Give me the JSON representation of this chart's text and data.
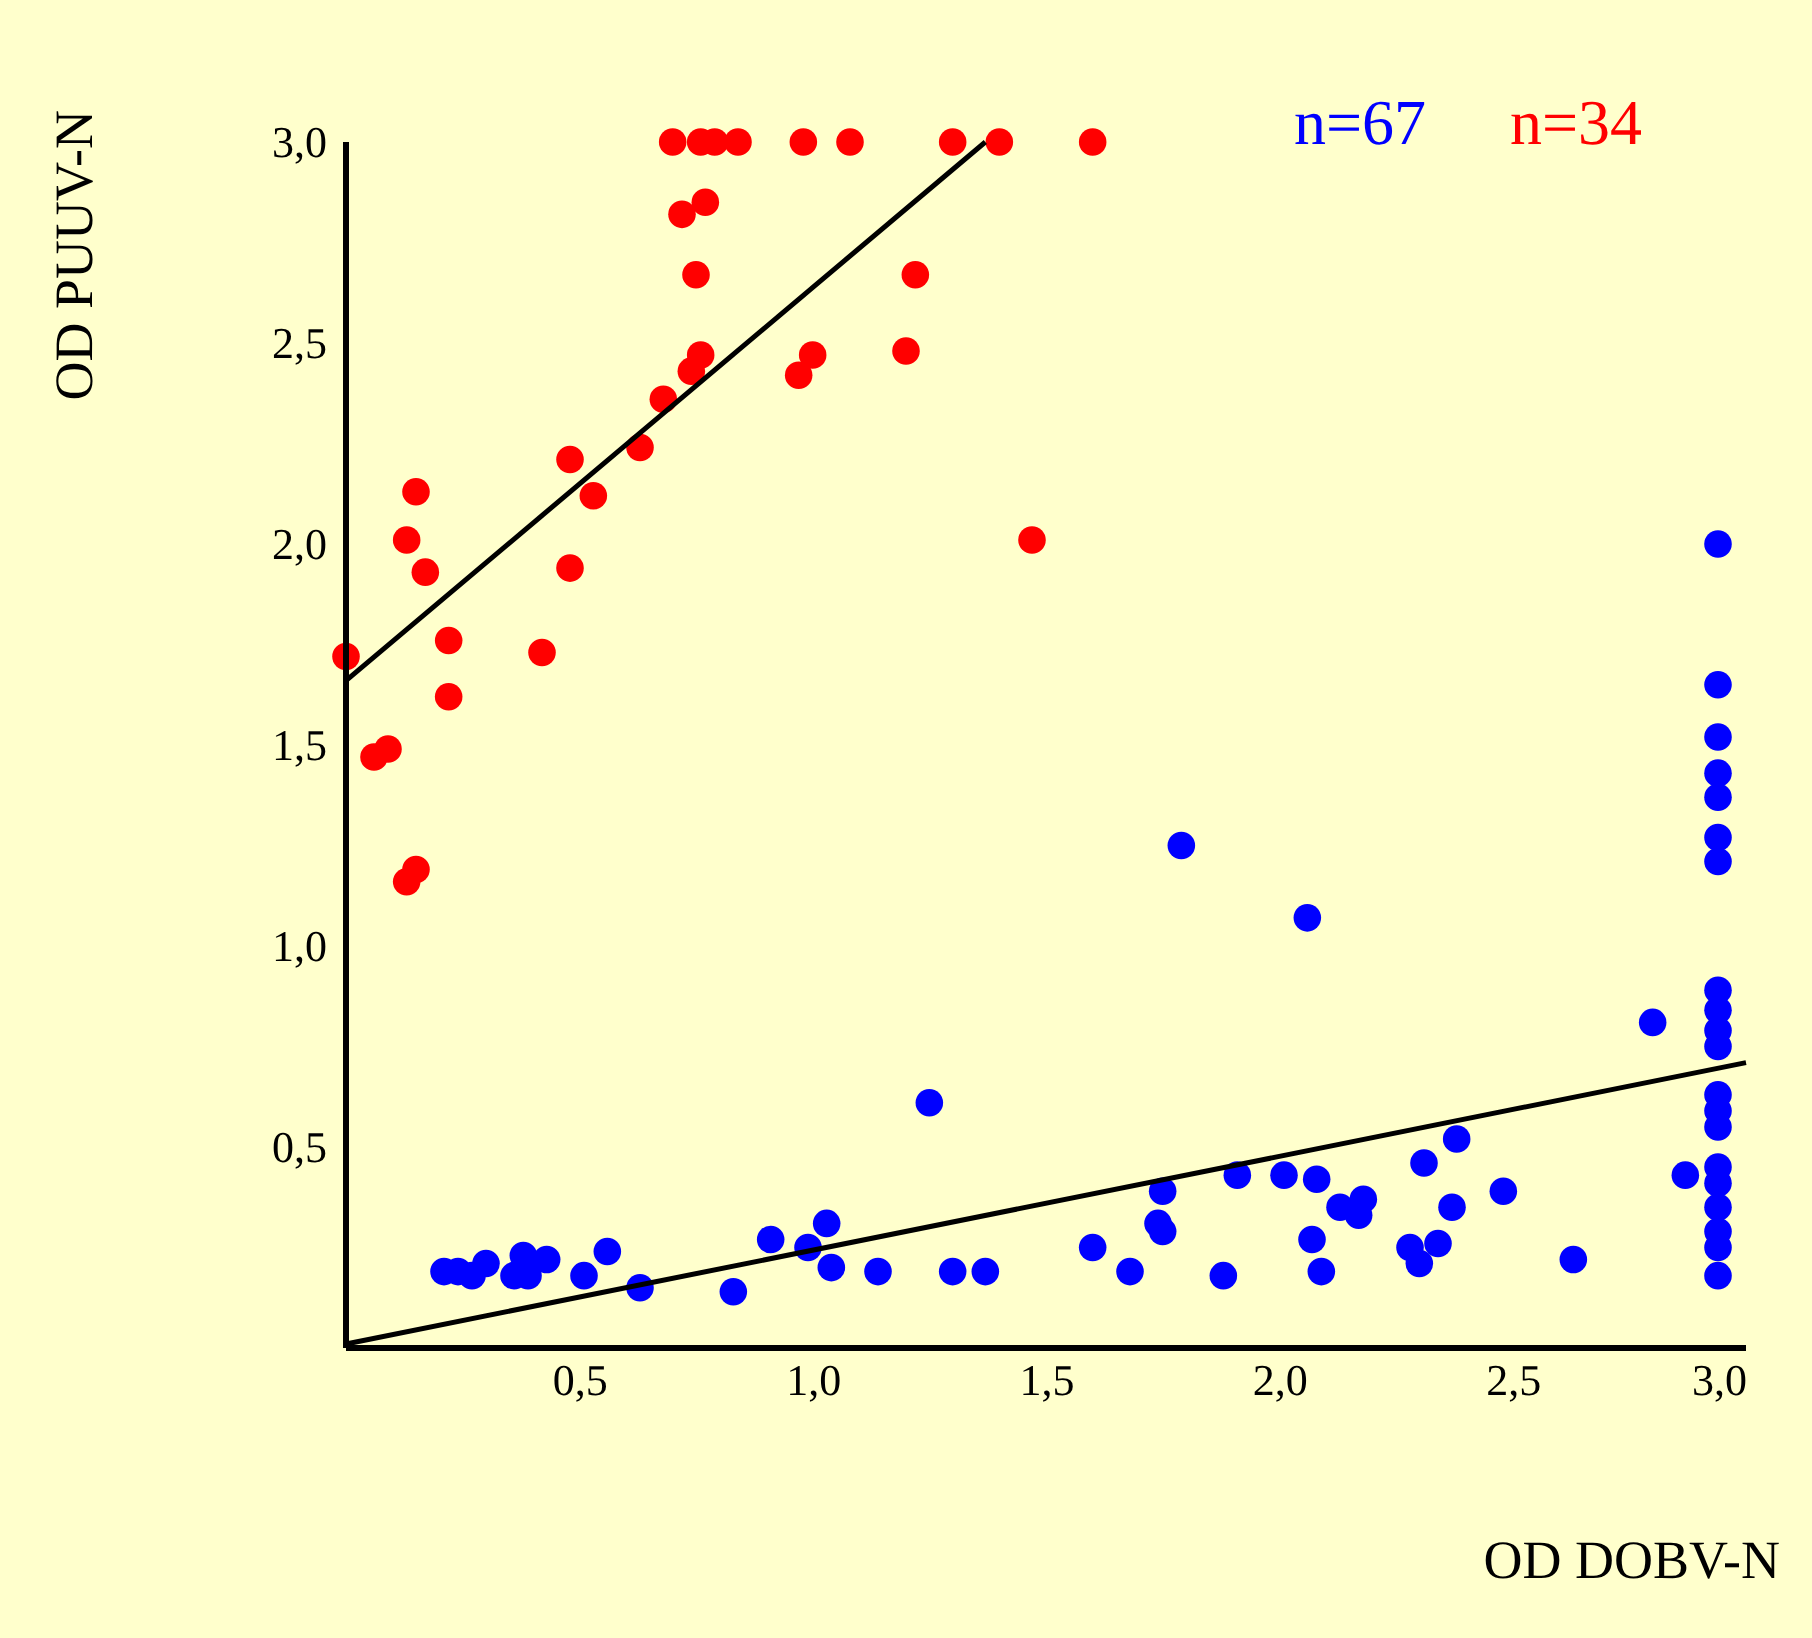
{
  "chart_data": {
    "type": "scatter",
    "xlabel": "OD DOBV-N",
    "ylabel": "OD PUUV-N",
    "xlim": [
      0,
      3
    ],
    "ylim": [
      0,
      3
    ],
    "xticks": [
      {
        "value": 0.5,
        "label": "0,5"
      },
      {
        "value": 1,
        "label": "1,0"
      },
      {
        "value": 1.5,
        "label": "1,5"
      },
      {
        "value": 2,
        "label": "2,0"
      },
      {
        "value": 2.5,
        "label": "2,5"
      },
      {
        "value": 3,
        "label": "3,0"
      }
    ],
    "yticks": [
      {
        "value": 0.5,
        "label": "0,5"
      },
      {
        "value": 1,
        "label": "1,0"
      },
      {
        "value": 1.5,
        "label": "1,5"
      },
      {
        "value": 2,
        "label": "2,0"
      },
      {
        "value": 2.5,
        "label": "2,5"
      },
      {
        "value": 3,
        "label": "3,0"
      }
    ],
    "grid": false,
    "legend": "top right",
    "series": [
      {
        "name": "n=67",
        "type": "scatter",
        "marker": "circle",
        "color": "#0000ff",
        "x": [
          0.21,
          0.24,
          0.27,
          0.3,
          0.36,
          0.38,
          0.39,
          0.43,
          0.51,
          0.56,
          0.63,
          0.83,
          0.91,
          0.99,
          1.03,
          1.04,
          1.14,
          1.25,
          1.3,
          1.37,
          1.6,
          1.68,
          1.75,
          1.74,
          1.75,
          1.79,
          1.88,
          1.91,
          2.01,
          2.06,
          2.08,
          2.07,
          2.09,
          2.13,
          2.18,
          2.17,
          2.31,
          2.38,
          2.28,
          2.3,
          2.34,
          2.37,
          2.48,
          2.63,
          2.8,
          2.87,
          2.94,
          2.94,
          2.94,
          2.94,
          2.94,
          2.94,
          2.94,
          2.94,
          2.94,
          2.94,
          2.94,
          2.94,
          2.94,
          2.94,
          2.94,
          2.94,
          2.94,
          2.94,
          2.94,
          2.94
        ],
        "values": [
          0.19,
          0.19,
          0.18,
          0.21,
          0.18,
          0.23,
          0.18,
          0.22,
          0.18,
          0.24,
          0.15,
          0.14,
          0.27,
          0.25,
          0.31,
          0.2,
          0.19,
          0.61,
          0.19,
          0.19,
          0.25,
          0.19,
          0.39,
          0.31,
          0.29,
          1.25,
          0.18,
          0.43,
          0.43,
          1.07,
          0.42,
          0.27,
          0.19,
          0.35,
          0.37,
          0.33,
          0.46,
          0.52,
          0.25,
          0.21,
          0.26,
          0.35,
          0.39,
          0.22,
          0.81,
          0.43,
          2.0,
          1.65,
          1.52,
          1.43,
          1.37,
          1.27,
          1.21,
          0.89,
          0.84,
          0.79,
          0.75,
          0.63,
          0.59,
          0.55,
          0.45,
          0.41,
          0.35,
          0.29,
          0.25,
          0.18
        ]
      },
      {
        "name": "n=34",
        "type": "scatter",
        "marker": "circle",
        "color": "#ff0000",
        "x": [
          0,
          0.06,
          0.09,
          0.13,
          0.15,
          0.13,
          0.15,
          0.17,
          0.22,
          0.22,
          0.42,
          0.48,
          0.48,
          0.53,
          0.63,
          0.68,
          0.7,
          0.72,
          0.74,
          0.75,
          0.76,
          0.77,
          0.76,
          0.79,
          0.84,
          0.97,
          0.98,
          1.0,
          1.08,
          1.2,
          1.22,
          1.3,
          1.4,
          1.47,
          1.6
        ],
        "values": [
          1.72,
          1.47,
          1.49,
          1.16,
          1.19,
          2.01,
          2.13,
          1.93,
          1.76,
          1.62,
          1.73,
          1.94,
          2.21,
          2.12,
          2.24,
          2.36,
          3.0,
          2.82,
          2.43,
          2.67,
          2.47,
          2.85,
          3.0,
          3.0,
          3.0,
          2.42,
          3.0,
          2.47,
          3.0,
          2.48,
          2.67,
          3.0,
          3.0,
          2.01,
          3.0
        ]
      },
      {
        "type": "line",
        "color": "#000000",
        "line_style": "solid",
        "x": [
          0,
          1.37
        ],
        "values": [
          1.66,
          3.0
        ]
      },
      {
        "type": "line",
        "color": "#000000",
        "line_style": "solid",
        "x": [
          0,
          3.0
        ],
        "values": [
          0.01,
          0.71
        ]
      }
    ]
  }
}
